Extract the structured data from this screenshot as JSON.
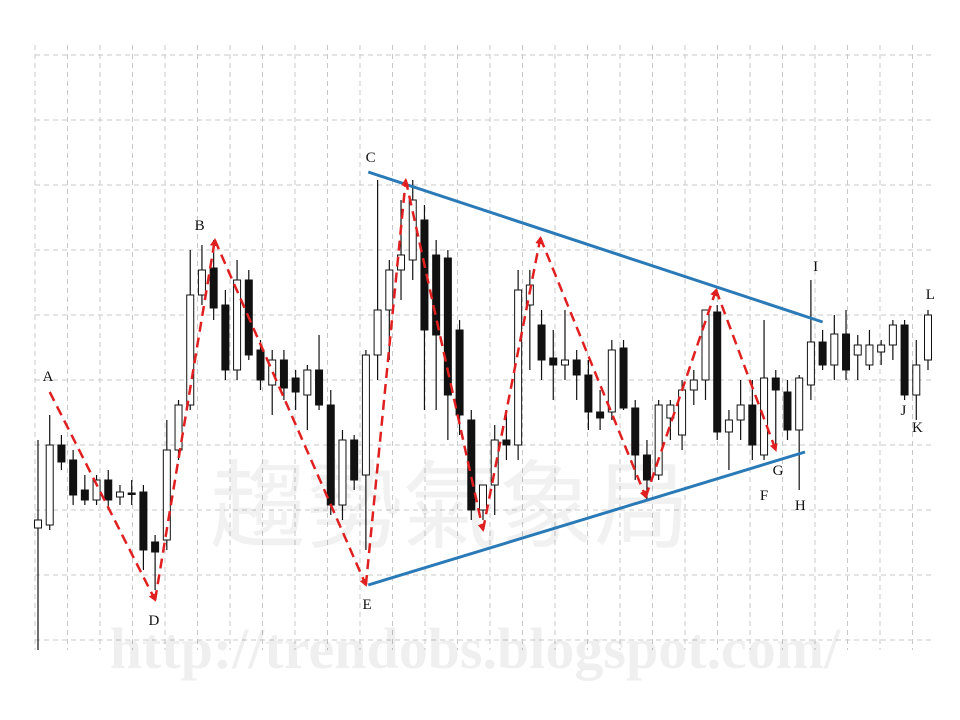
{
  "chart_data": {
    "type": "candlestick",
    "xlim": [
      0,
      76
    ],
    "ylim": [
      40,
      660
    ],
    "grid": true,
    "up_color": "#ffffff",
    "down_color": "#111111",
    "candles": [
      [
        172,
        260,
        50,
        180
      ],
      [
        175,
        285,
        170,
        255
      ],
      [
        255,
        265,
        230,
        238
      ],
      [
        240,
        250,
        195,
        205
      ],
      [
        210,
        225,
        195,
        200
      ],
      [
        200,
        225,
        195,
        220
      ],
      [
        220,
        230,
        190,
        200
      ],
      [
        203,
        215,
        195,
        208
      ],
      [
        207,
        220,
        195,
        206
      ],
      [
        208,
        215,
        130,
        150
      ],
      [
        158,
        165,
        110,
        148
      ],
      [
        160,
        280,
        150,
        250
      ],
      [
        250,
        300,
        240,
        295
      ],
      [
        295,
        450,
        290,
        405
      ],
      [
        405,
        455,
        395,
        430
      ],
      [
        432,
        460,
        380,
        392
      ],
      [
        395,
        410,
        320,
        330
      ],
      [
        330,
        440,
        320,
        420
      ],
      [
        420,
        430,
        340,
        345
      ],
      [
        350,
        360,
        310,
        320
      ],
      [
        315,
        350,
        285,
        340
      ],
      [
        340,
        350,
        300,
        312
      ],
      [
        322,
        330,
        290,
        308
      ],
      [
        305,
        335,
        270,
        330
      ],
      [
        330,
        365,
        290,
        295
      ],
      [
        295,
        310,
        185,
        195
      ],
      [
        195,
        270,
        180,
        260
      ],
      [
        260,
        265,
        210,
        220
      ],
      [
        225,
        350,
        150,
        345
      ],
      [
        345,
        520,
        320,
        390
      ],
      [
        390,
        440,
        340,
        430
      ],
      [
        430,
        500,
        400,
        445
      ],
      [
        440,
        520,
        420,
        500
      ],
      [
        480,
        495,
        290,
        370
      ],
      [
        445,
        460,
        290,
        365
      ],
      [
        442,
        450,
        260,
        305
      ],
      [
        370,
        380,
        265,
        285
      ],
      [
        280,
        290,
        180,
        190
      ],
      [
        190,
        215,
        180,
        215
      ],
      [
        215,
        275,
        185,
        260
      ],
      [
        260,
        290,
        240,
        255
      ],
      [
        255,
        430,
        240,
        410
      ],
      [
        395,
        430,
        330,
        415
      ],
      [
        375,
        390,
        320,
        340
      ],
      [
        342,
        370,
        300,
        335
      ],
      [
        335,
        390,
        320,
        340
      ],
      [
        340,
        350,
        300,
        325
      ],
      [
        325,
        340,
        270,
        288
      ],
      [
        288,
        310,
        270,
        282
      ],
      [
        288,
        360,
        280,
        350
      ],
      [
        352,
        360,
        290,
        292
      ],
      [
        292,
        300,
        220,
        245
      ],
      [
        245,
        260,
        200,
        220
      ],
      [
        225,
        300,
        220,
        295
      ],
      [
        282,
        300,
        260,
        295
      ],
      [
        265,
        320,
        250,
        310
      ],
      [
        310,
        330,
        295,
        320
      ],
      [
        320,
        390,
        300,
        390
      ],
      [
        388,
        395,
        260,
        268
      ],
      [
        268,
        290,
        230,
        280
      ],
      [
        280,
        320,
        260,
        295
      ],
      [
        295,
        320,
        240,
        255
      ],
      [
        245,
        380,
        240,
        322
      ],
      [
        322,
        330,
        250,
        310
      ],
      [
        308,
        320,
        260,
        270
      ],
      [
        270,
        325,
        210,
        322
      ],
      [
        315,
        420,
        300,
        358
      ],
      [
        358,
        370,
        330,
        335
      ],
      [
        335,
        385,
        320,
        366
      ],
      [
        366,
        390,
        320,
        330
      ],
      [
        345,
        365,
        320,
        355
      ],
      [
        335,
        370,
        330,
        355
      ],
      [
        348,
        360,
        335,
        355
      ],
      [
        355,
        380,
        340,
        375
      ],
      [
        375,
        380,
        300,
        305
      ],
      [
        305,
        360,
        280,
        335
      ],
      [
        340,
        390,
        330,
        385
      ]
    ],
    "zigzag": {
      "color": "#e02020",
      "x": [
        1,
        10,
        15.1,
        28,
        31.4,
        38,
        42.9,
        51.9,
        57.9,
        63
      ],
      "y": [
        308,
        100,
        460,
        115,
        520,
        170,
        462,
        203,
        410,
        250
      ]
    },
    "trendlines": [
      {
        "color": "#2a7ab8",
        "x": [
          28.2,
          67
        ],
        "y": [
          528,
          378
        ]
      },
      {
        "color": "#2a7ab8",
        "x": [
          28.2,
          65.5
        ],
        "y": [
          115,
          248
        ]
      }
    ],
    "annotations": [
      {
        "text": "A",
        "x": 0.85,
        "y": 324
      },
      {
        "text": "B",
        "x": 13.8,
        "y": 475
      },
      {
        "text": "C",
        "x": 28.4,
        "y": 543
      },
      {
        "text": "D",
        "x": 9.9,
        "y": 80
      },
      {
        "text": "E",
        "x": 28.1,
        "y": 96
      },
      {
        "text": "F",
        "x": 62,
        "y": 205
      },
      {
        "text": "G",
        "x": 63.2,
        "y": 230
      },
      {
        "text": "H",
        "x": 65.1,
        "y": 195
      },
      {
        "text": "I",
        "x": 66.4,
        "y": 434
      },
      {
        "text": "J",
        "x": 73.9,
        "y": 290
      },
      {
        "text": "K",
        "x": 75.1,
        "y": 273
      },
      {
        "text": "L",
        "x": 76.2,
        "y": 406
      }
    ],
    "watermark": "http://trendobs.blogspot.com/",
    "watermark_cn": "趨勢氣象局"
  }
}
